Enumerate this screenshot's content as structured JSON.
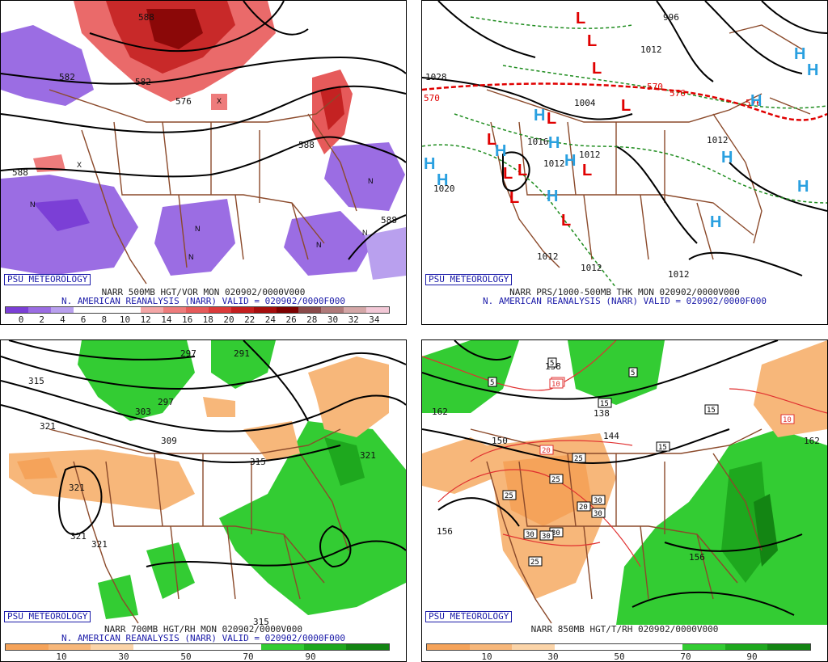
{
  "panels": {
    "tl": {
      "badge": "PSU METEOROLOGY",
      "caption1": "NARR 500MB HGT/VOR MON 020902/0000V000",
      "caption2": "N. AMERICAN REANALYSIS (NARR) VALID = 020902/0000F000",
      "contour_labels": [
        "582",
        "588",
        "576",
        "588",
        "588",
        "582",
        "588"
      ],
      "colorbar": {
        "ticks": [
          "0",
          "2",
          "4",
          "6",
          "8",
          "10",
          "12",
          "14",
          "16",
          "18",
          "20",
          "22",
          "24",
          "26",
          "28",
          "30",
          "32",
          "34"
        ],
        "colors": [
          "#7b3fd6",
          "#9b6de3",
          "#b9a0ee",
          "#ffffff",
          "#ffffff",
          "#ffffff",
          "#f4a7a7",
          "#ee7c7c",
          "#e65a5a",
          "#db3a3a",
          "#c41e1e",
          "#a50d0d",
          "#7c0000",
          "#8a4a4a",
          "#b07a7a",
          "#d4a7a7",
          "#f2c8d6"
        ]
      },
      "symbols": [
        "N",
        "N",
        "N",
        "N",
        "N",
        "X",
        "N",
        "X"
      ]
    },
    "tr": {
      "badge": "PSU METEOROLOGY",
      "caption1": "NARR PRS/1000-500MB THK MON 020902/0000V000",
      "caption2": "N. AMERICAN REANALYSIS (NARR) VALID = 020902/0000F000",
      "contour_labels": [
        "996",
        "1028",
        "1004",
        "1012",
        "1012",
        "1016",
        "1012",
        "1020",
        "1012",
        "1012",
        "1012",
        "1012",
        "570",
        "570",
        "576",
        "576"
      ],
      "symbols": [
        "H",
        "H",
        "H",
        "H",
        "H",
        "H",
        "H",
        "H",
        "H",
        "H",
        "H",
        "H",
        "H",
        "L",
        "L",
        "L",
        "L",
        "L",
        "L",
        "L",
        "L",
        "L",
        "L",
        "L"
      ]
    },
    "bl": {
      "badge": "PSU METEOROLOGY",
      "caption1": "NARR 700MB HGT/RH MON 020902/0000V000",
      "caption2": "N. AMERICAN REANALYSIS (NARR) VALID = 020902/0000F000",
      "contour_labels": [
        "297",
        "291",
        "315",
        "321",
        "297",
        "303",
        "309",
        "315",
        "321",
        "321",
        "321",
        "321",
        "315"
      ],
      "colorbar": {
        "ticks": [
          "10",
          "30",
          "50",
          "70",
          "90"
        ],
        "colors": [
          "#f5a35a",
          "#f7b77a",
          "#fbd4a8",
          "#ffffff",
          "#ffffff",
          "#ffffff",
          "#33cc33",
          "#1ea81e",
          "#138513"
        ]
      }
    },
    "br": {
      "badge": "PSU METEOROLOGY",
      "caption1": "NARR 850MB HGT/T/RH 020902/0000V000",
      "contour_labels": [
        "162",
        "150",
        "156",
        "138",
        "138",
        "156",
        "162",
        "144"
      ],
      "temp_labels": [
        "5",
        "5",
        "10",
        "5",
        "15",
        "15",
        "15",
        "20",
        "25",
        "25",
        "25",
        "30",
        "30",
        "30",
        "20",
        "30",
        "30",
        "25",
        "10",
        "10"
      ],
      "colorbar": {
        "ticks": [
          "10",
          "30",
          "50",
          "70",
          "90"
        ],
        "colors": [
          "#f5a35a",
          "#f7b77a",
          "#fbd4a8",
          "#ffffff",
          "#ffffff",
          "#ffffff",
          "#33cc33",
          "#1ea81e",
          "#138513"
        ]
      }
    }
  },
  "colors": {
    "badge_border": "#1a1aa8",
    "caption_blue": "#1a1aa8",
    "border_lines": "#8b4a2b",
    "height_contours": "#000000",
    "high_symbol": "#2aa0e0",
    "low_symbol": "#e00000",
    "thickness_dashed": "#1e8c1e",
    "freezing_line": "#e00000"
  }
}
